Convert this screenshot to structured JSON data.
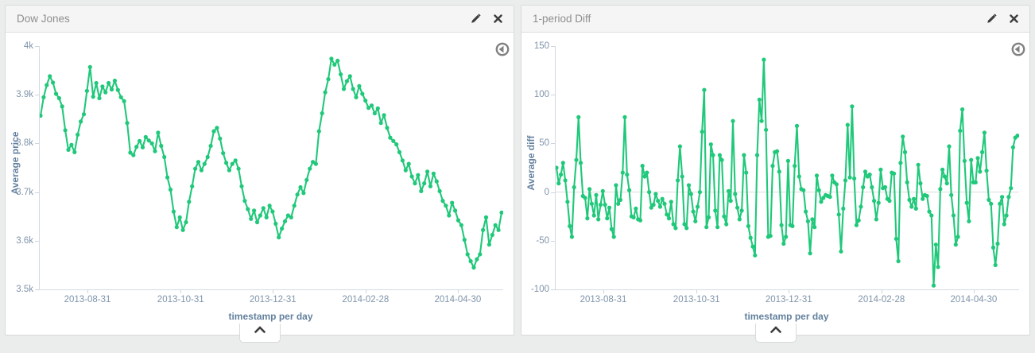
{
  "panels": [
    {
      "title": "Dow Jones"
    },
    {
      "title": "1-period Diff"
    }
  ],
  "controls": {
    "edit_icon": "pencil-icon",
    "close_icon": "close-icon",
    "zoom_out_icon": "circle-arrow-left-icon",
    "collapse_icon": "chevron-up-icon"
  },
  "colors": {
    "series_green": "#20c87a",
    "axis_text": "#7f94aa",
    "axis_title_text": "#64819e",
    "gridline": "#dddddd",
    "panel_header_bg": "#f5f5f5",
    "panel_border": "#d8dadb",
    "page_bg": "#ebedec"
  },
  "chart_data": [
    {
      "type": "line",
      "title": "Dow Jones",
      "xlabel": "timestamp per day",
      "ylabel": "Average price",
      "legend": "none",
      "grid": "zero-line only on diff chart",
      "color": "#20c87a",
      "x_range": {
        "start": "2013-07-30",
        "end": "2014-05-30",
        "interval": "1 day"
      },
      "ylim": [
        3500,
        4000
      ],
      "yticks": [
        {
          "v": 4000,
          "label": "4k"
        },
        {
          "v": 3900,
          "label": "3.9k"
        },
        {
          "v": 3800,
          "label": "3.8k"
        },
        {
          "v": 3700,
          "label": "3.7k"
        },
        {
          "v": 3600,
          "label": "3.6k"
        },
        {
          "v": 3500,
          "label": "3.5k"
        }
      ],
      "xticks": [
        {
          "pos": 0.103,
          "label": "2013-08-31"
        },
        {
          "pos": 0.304,
          "label": "2013-10-31"
        },
        {
          "pos": 0.503,
          "label": "2013-12-31"
        },
        {
          "pos": 0.703,
          "label": "2014-02-28"
        },
        {
          "pos": 0.902,
          "label": "2014-04-30"
        }
      ],
      "gridlines": [],
      "values": [
        3857,
        3895,
        3920,
        3938,
        3925,
        3902,
        3893,
        3876,
        3827,
        3787,
        3797,
        3782,
        3818,
        3845,
        3860,
        3908,
        3957,
        3896,
        3924,
        3893,
        3917,
        3905,
        3924,
        3911,
        3929,
        3910,
        3895,
        3887,
        3842,
        3781,
        3776,
        3793,
        3805,
        3792,
        3813,
        3806,
        3800,
        3784,
        3822,
        3795,
        3772,
        3730,
        3705,
        3660,
        3628,
        3648,
        3622,
        3638,
        3680,
        3712,
        3748,
        3762,
        3745,
        3758,
        3772,
        3795,
        3825,
        3832,
        3810,
        3780,
        3760,
        3745,
        3758,
        3765,
        3748,
        3712,
        3682,
        3665,
        3645,
        3662,
        3638,
        3652,
        3667,
        3648,
        3672,
        3660,
        3635,
        3607,
        3625,
        3640,
        3652,
        3648,
        3672,
        3695,
        3710,
        3698,
        3725,
        3748,
        3762,
        3758,
        3825,
        3862,
        3905,
        3932,
        3974,
        3962,
        3970,
        3942,
        3912,
        3928,
        3938,
        3912,
        3895,
        3918,
        3902,
        3888,
        3873,
        3878,
        3862,
        3872,
        3842,
        3858,
        3832,
        3812,
        3805,
        3798,
        3782,
        3765,
        3745,
        3758,
        3732,
        3718,
        3735,
        3702,
        3718,
        3742,
        3712,
        3738,
        3722,
        3702,
        3682,
        3672,
        3652,
        3678,
        3662,
        3642,
        3632,
        3602,
        3572,
        3558,
        3545,
        3562,
        3572,
        3622,
        3648,
        3592,
        3612,
        3632,
        3622,
        3658
      ]
    },
    {
      "type": "line",
      "title": "1-period Diff",
      "xlabel": "timestamp per day",
      "ylabel": "Average diff",
      "legend": "none",
      "color": "#20c87a",
      "x_range": {
        "start": "2013-07-30",
        "end": "2014-05-30",
        "interval": "1 day"
      },
      "ylim": [
        -100,
        150
      ],
      "yticks": [
        {
          "v": 150,
          "label": "150"
        },
        {
          "v": 100,
          "label": "100"
        },
        {
          "v": 50,
          "label": "50"
        },
        {
          "v": 0,
          "label": "0"
        },
        {
          "v": -50,
          "label": "-50"
        },
        {
          "v": -100,
          "label": "-100"
        }
      ],
      "xticks": [
        {
          "pos": 0.103,
          "label": "2013-08-31"
        },
        {
          "pos": 0.304,
          "label": "2013-10-31"
        },
        {
          "pos": 0.503,
          "label": "2013-12-31"
        },
        {
          "pos": 0.703,
          "label": "2014-02-28"
        },
        {
          "pos": 0.902,
          "label": "2014-04-30"
        }
      ],
      "gridlines": [
        0
      ],
      "values": [
        25,
        9,
        18,
        30,
        12,
        -10,
        -35,
        -46,
        5,
        33,
        77,
        30,
        -4,
        -6,
        -27,
        3,
        -12,
        -24,
        -3,
        -28,
        -13,
        1,
        -13,
        -27,
        -16,
        -38,
        -46,
        7,
        -12,
        -8,
        20,
        77,
        18,
        2,
        -25,
        -26,
        -17,
        -28,
        -29,
        27,
        16,
        20,
        0,
        -16,
        -13,
        -2,
        -9,
        -15,
        -7,
        -12,
        -23,
        -27,
        -10,
        -33,
        -37,
        12,
        47,
        16,
        -33,
        -37,
        7,
        -2,
        -20,
        -30,
        -15,
        0,
        62,
        105,
        -36,
        -26,
        49,
        38,
        -19,
        -36,
        38,
        33,
        -25,
        -33,
        1,
        -9,
        73,
        -2,
        -16,
        -28,
        -19,
        38,
        20,
        -35,
        -47,
        -56,
        -65,
        38,
        95,
        73,
        136,
        64,
        -46,
        -45,
        27,
        41,
        42,
        21,
        -34,
        -53,
        -46,
        32,
        -34,
        -35,
        27,
        68,
        16,
        3,
        2,
        -20,
        -30,
        -63,
        -28,
        -36,
        17,
        2,
        -10,
        -6,
        -3,
        -4,
        -5,
        17,
        10,
        8,
        -23,
        -61,
        -17,
        12,
        69,
        15,
        88,
        14,
        -34,
        -29,
        -15,
        5,
        21,
        16,
        18,
        5,
        -9,
        -28,
        -11,
        23,
        4,
        5,
        -7,
        -9,
        20,
        19,
        -48,
        -71,
        30,
        57,
        41,
        10,
        -8,
        -15,
        -7,
        -17,
        28,
        9,
        -7,
        -3,
        -4,
        -20,
        -24,
        -96,
        -54,
        -77,
        3,
        23,
        16,
        9,
        47,
        -3,
        -24,
        -54,
        -46,
        63,
        85,
        32,
        -11,
        -30,
        33,
        10,
        10,
        35,
        21,
        41,
        61,
        22,
        -8,
        -12,
        -57,
        -75,
        -53,
        -12,
        -5,
        -33,
        -24,
        -5,
        4,
        46,
        56,
        58
      ]
    }
  ]
}
